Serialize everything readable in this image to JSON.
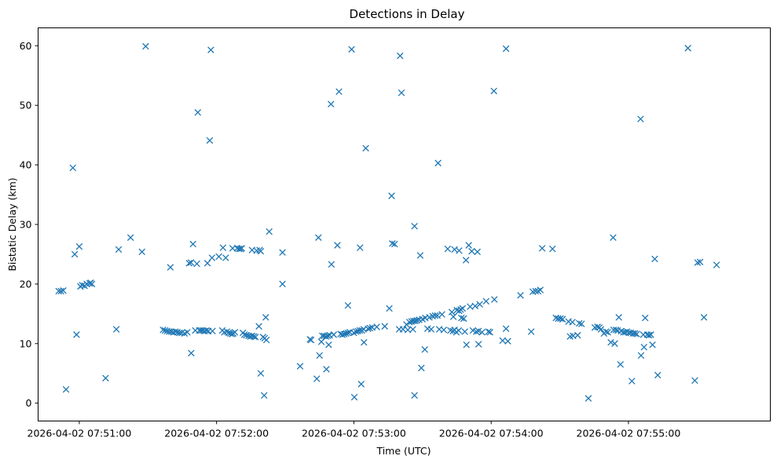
{
  "chart_data": {
    "type": "scatter",
    "title": "Detections in Delay",
    "xlabel": "Time (UTC)",
    "ylabel": "Bistatic Delay (km)",
    "marker": "x",
    "series_color": "#1f77b4",
    "x_unit": "seconds after 2026-04-02 07:50:00",
    "xlim": [
      42,
      362
    ],
    "ylim": [
      -3,
      63
    ],
    "xticks": [
      {
        "value": 60,
        "label": "2026-04-02 07:51:00"
      },
      {
        "value": 120,
        "label": "2026-04-02 07:52:00"
      },
      {
        "value": 180,
        "label": "2026-04-02 07:53:00"
      },
      {
        "value": 240,
        "label": "2026-04-02 07:54:00"
      },
      {
        "value": 300,
        "label": "2026-04-02 07:55:00"
      }
    ],
    "yticks": [
      {
        "value": 0,
        "label": "0"
      },
      {
        "value": 10,
        "label": "10"
      },
      {
        "value": 20,
        "label": "20"
      },
      {
        "value": 30,
        "label": "30"
      },
      {
        "value": 40,
        "label": "40"
      },
      {
        "value": 50,
        "label": "50"
      },
      {
        "value": 60,
        "label": "60"
      }
    ],
    "points": [
      [
        51.0,
        18.8
      ],
      [
        52.0,
        18.8
      ],
      [
        53.0,
        18.9
      ],
      [
        54.2,
        2.3
      ],
      [
        57.2,
        39.5
      ],
      [
        58.0,
        25.0
      ],
      [
        58.8,
        11.5
      ],
      [
        60.0,
        26.3
      ],
      [
        60.5,
        19.6
      ],
      [
        61.3,
        19.8
      ],
      [
        62.3,
        19.7
      ],
      [
        63.3,
        20.0
      ],
      [
        64.5,
        20.1
      ],
      [
        65.0,
        20.2
      ],
      [
        65.5,
        20.0
      ],
      [
        71.5,
        4.2
      ],
      [
        76.2,
        12.4
      ],
      [
        77.2,
        25.8
      ],
      [
        82.4,
        27.8
      ],
      [
        87.4,
        25.4
      ],
      [
        89.0,
        59.9
      ],
      [
        96.6,
        12.3
      ],
      [
        97.5,
        12.2
      ],
      [
        98.4,
        12.1
      ],
      [
        99.3,
        12.0
      ],
      [
        100.2,
        12.0
      ],
      [
        101.1,
        11.9
      ],
      [
        102.0,
        12.0
      ],
      [
        102.9,
        11.9
      ],
      [
        103.8,
        11.8
      ],
      [
        104.7,
        11.8
      ],
      [
        99.8,
        22.8
      ],
      [
        106.0,
        11.7
      ],
      [
        107.2,
        11.9
      ],
      [
        108.0,
        23.5
      ],
      [
        108.8,
        23.6
      ],
      [
        108.9,
        8.4
      ],
      [
        109.7,
        26.7
      ],
      [
        110.7,
        12.2
      ],
      [
        111.4,
        23.4
      ],
      [
        111.8,
        48.8
      ],
      [
        112.5,
        12.2
      ],
      [
        113.2,
        12.2
      ],
      [
        114.0,
        12.2
      ],
      [
        114.8,
        12.1
      ],
      [
        115.6,
        12.2
      ],
      [
        116.4,
        12.1
      ],
      [
        116.0,
        23.5
      ],
      [
        117.0,
        44.1
      ],
      [
        117.5,
        59.3
      ],
      [
        118.0,
        24.4
      ],
      [
        118.2,
        12.1
      ],
      [
        121.0,
        24.6
      ],
      [
        122.5,
        12.2
      ],
      [
        122.8,
        26.1
      ],
      [
        123.4,
        11.9
      ],
      [
        124.0,
        24.4
      ],
      [
        124.5,
        12.0
      ],
      [
        125.2,
        11.8
      ],
      [
        126.0,
        11.7
      ],
      [
        126.7,
        11.6
      ],
      [
        127.3,
        11.7
      ],
      [
        128.0,
        11.9
      ],
      [
        127.0,
        26.0
      ],
      [
        129.0,
        26.0
      ],
      [
        129.8,
        25.9
      ],
      [
        130.5,
        25.9
      ],
      [
        131.0,
        26.0
      ],
      [
        131.5,
        11.8
      ],
      [
        132.2,
        11.5
      ],
      [
        133.0,
        11.4
      ],
      [
        134.0,
        11.3
      ],
      [
        134.8,
        11.2
      ],
      [
        135.5,
        11.3
      ],
      [
        136.3,
        11.2
      ],
      [
        137.0,
        11.1
      ],
      [
        135.5,
        25.7
      ],
      [
        137.5,
        25.6
      ],
      [
        138.5,
        12.9
      ],
      [
        138.8,
        25.7
      ],
      [
        139.3,
        25.5
      ],
      [
        139.3,
        5.0
      ],
      [
        140.3,
        11.1
      ],
      [
        140.8,
        1.3
      ],
      [
        141.0,
        10.9
      ],
      [
        141.5,
        14.4
      ],
      [
        141.8,
        10.6
      ],
      [
        143.0,
        28.8
      ],
      [
        148.8,
        25.3
      ],
      [
        148.8,
        20.0
      ],
      [
        156.5,
        6.2
      ],
      [
        160.8,
        10.7
      ],
      [
        161.3,
        10.6
      ],
      [
        163.8,
        4.1
      ],
      [
        164.5,
        27.8
      ],
      [
        165.0,
        8.0
      ],
      [
        165.8,
        10.3
      ],
      [
        166.2,
        11.3
      ],
      [
        167.0,
        11.3
      ],
      [
        167.8,
        11.2
      ],
      [
        168.6,
        11.3
      ],
      [
        169.4,
        11.4
      ],
      [
        168.0,
        5.7
      ],
      [
        169.0,
        9.8
      ],
      [
        170.0,
        50.2
      ],
      [
        170.2,
        23.3
      ],
      [
        171.2,
        11.5
      ],
      [
        172.8,
        26.5
      ],
      [
        173.5,
        52.3
      ],
      [
        174.2,
        11.6
      ],
      [
        175.0,
        11.5
      ],
      [
        175.8,
        11.6
      ],
      [
        176.6,
        11.7
      ],
      [
        177.4,
        11.8
      ],
      [
        178.2,
        11.9
      ],
      [
        177.4,
        16.4
      ],
      [
        179.0,
        59.4
      ],
      [
        180.2,
        1.0
      ],
      [
        180.0,
        11.8
      ],
      [
        181.0,
        12.0
      ],
      [
        181.8,
        12.1
      ],
      [
        182.6,
        12.2
      ],
      [
        182.7,
        26.1
      ],
      [
        183.5,
        12.2
      ],
      [
        183.2,
        3.2
      ],
      [
        184.3,
        12.4
      ],
      [
        184.4,
        10.2
      ],
      [
        185.2,
        42.8
      ],
      [
        186.2,
        12.5
      ],
      [
        187.0,
        12.6
      ],
      [
        188.0,
        12.7
      ],
      [
        190.0,
        12.8
      ],
      [
        193.5,
        12.9
      ],
      [
        195.5,
        15.9
      ],
      [
        196.5,
        34.8
      ],
      [
        196.8,
        26.8
      ],
      [
        197.8,
        26.7
      ],
      [
        199.8,
        12.4
      ],
      [
        200.2,
        58.3
      ],
      [
        200.8,
        52.1
      ],
      [
        201.5,
        12.4
      ],
      [
        203.0,
        13.2
      ],
      [
        203.6,
        12.3
      ],
      [
        204.3,
        13.6
      ],
      [
        205.2,
        13.7
      ],
      [
        205.8,
        12.4
      ],
      [
        206.0,
        13.8
      ],
      [
        206.8,
        13.8
      ],
      [
        206.5,
        29.7
      ],
      [
        206.5,
        1.3
      ],
      [
        207.5,
        13.9
      ],
      [
        208.5,
        14.0
      ],
      [
        209.0,
        24.8
      ],
      [
        209.5,
        5.9
      ],
      [
        210.0,
        14.1
      ],
      [
        211.0,
        9.0
      ],
      [
        211.2,
        14.3
      ],
      [
        212.2,
        12.5
      ],
      [
        213.0,
        14.4
      ],
      [
        213.8,
        12.4
      ],
      [
        214.4,
        14.6
      ],
      [
        215.5,
        14.7
      ],
      [
        216.5,
        14.7
      ],
      [
        216.8,
        40.3
      ],
      [
        217.3,
        12.4
      ],
      [
        218.5,
        14.9
      ],
      [
        219.3,
        12.3
      ],
      [
        221.0,
        25.9
      ],
      [
        222.2,
        12.2
      ],
      [
        222.8,
        15.3
      ],
      [
        223.3,
        12.1
      ],
      [
        224.0,
        12.3
      ],
      [
        224.8,
        11.9
      ],
      [
        225.0,
        15.6
      ],
      [
        225.8,
        12.2
      ],
      [
        226.0,
        15.5
      ],
      [
        223.5,
        14.5
      ],
      [
        224.0,
        25.8
      ],
      [
        226.0,
        25.6
      ],
      [
        226.7,
        15.7
      ],
      [
        227.0,
        14.3
      ],
      [
        227.5,
        15.9
      ],
      [
        228.0,
        14.2
      ],
      [
        228.5,
        12.0
      ],
      [
        229.0,
        24.0
      ],
      [
        229.2,
        9.8
      ],
      [
        230.2,
        26.5
      ],
      [
        230.8,
        16.2
      ],
      [
        231.5,
        25.5
      ],
      [
        232.0,
        12.2
      ],
      [
        233.0,
        16.3
      ],
      [
        233.5,
        12.0
      ],
      [
        234.0,
        25.4
      ],
      [
        234.5,
        12.1
      ],
      [
        235.0,
        16.6
      ],
      [
        236.0,
        11.9
      ],
      [
        234.5,
        9.9
      ],
      [
        237.8,
        17.1
      ],
      [
        238.8,
        12.0
      ],
      [
        239.5,
        11.9
      ],
      [
        241.2,
        52.4
      ],
      [
        241.4,
        17.4
      ],
      [
        245.0,
        10.5
      ],
      [
        246.5,
        59.5
      ],
      [
        246.5,
        12.5
      ],
      [
        247.3,
        10.4
      ],
      [
        252.8,
        18.1
      ],
      [
        257.5,
        12.0
      ],
      [
        258.2,
        18.7
      ],
      [
        259.4,
        18.8
      ],
      [
        260.5,
        18.8
      ],
      [
        261.5,
        19.0
      ],
      [
        262.3,
        26.0
      ],
      [
        266.8,
        25.9
      ],
      [
        268.3,
        14.3
      ],
      [
        269.3,
        14.2
      ],
      [
        270.3,
        14.2
      ],
      [
        271.2,
        14.1
      ],
      [
        273.8,
        13.7
      ],
      [
        274.5,
        11.2
      ],
      [
        275.5,
        13.6
      ],
      [
        275.8,
        11.3
      ],
      [
        277.8,
        11.4
      ],
      [
        278.5,
        13.4
      ],
      [
        279.5,
        13.3
      ],
      [
        282.5,
        0.8
      ],
      [
        285.3,
        12.7
      ],
      [
        286.5,
        12.8
      ],
      [
        287.3,
        12.7
      ],
      [
        288.0,
        12.4
      ],
      [
        289.3,
        11.7
      ],
      [
        290.2,
        12.0
      ],
      [
        291.0,
        11.9
      ],
      [
        292.3,
        10.2
      ],
      [
        293.3,
        27.8
      ],
      [
        293.5,
        12.3
      ],
      [
        294.0,
        10.0
      ],
      [
        294.5,
        12.3
      ],
      [
        295.3,
        12.2
      ],
      [
        295.8,
        14.4
      ],
      [
        296.5,
        6.5
      ],
      [
        296.8,
        12.1
      ],
      [
        297.8,
        11.9
      ],
      [
        298.6,
        11.9
      ],
      [
        299.4,
        12.0
      ],
      [
        300.2,
        11.8
      ],
      [
        301.0,
        11.8
      ],
      [
        301.5,
        3.7
      ],
      [
        302.0,
        11.7
      ],
      [
        302.8,
        11.7
      ],
      [
        303.6,
        11.6
      ],
      [
        305.3,
        47.7
      ],
      [
        305.5,
        8.0
      ],
      [
        306.5,
        11.5
      ],
      [
        306.8,
        9.4
      ],
      [
        307.3,
        14.3
      ],
      [
        308.2,
        11.5
      ],
      [
        309.0,
        11.4
      ],
      [
        309.8,
        11.5
      ],
      [
        310.5,
        9.8
      ],
      [
        311.5,
        24.2
      ],
      [
        312.8,
        4.7
      ],
      [
        326.0,
        59.6
      ],
      [
        329.0,
        3.8
      ],
      [
        330.2,
        23.6
      ],
      [
        331.3,
        23.7
      ],
      [
        333.0,
        14.4
      ],
      [
        338.5,
        23.2
      ]
    ]
  }
}
